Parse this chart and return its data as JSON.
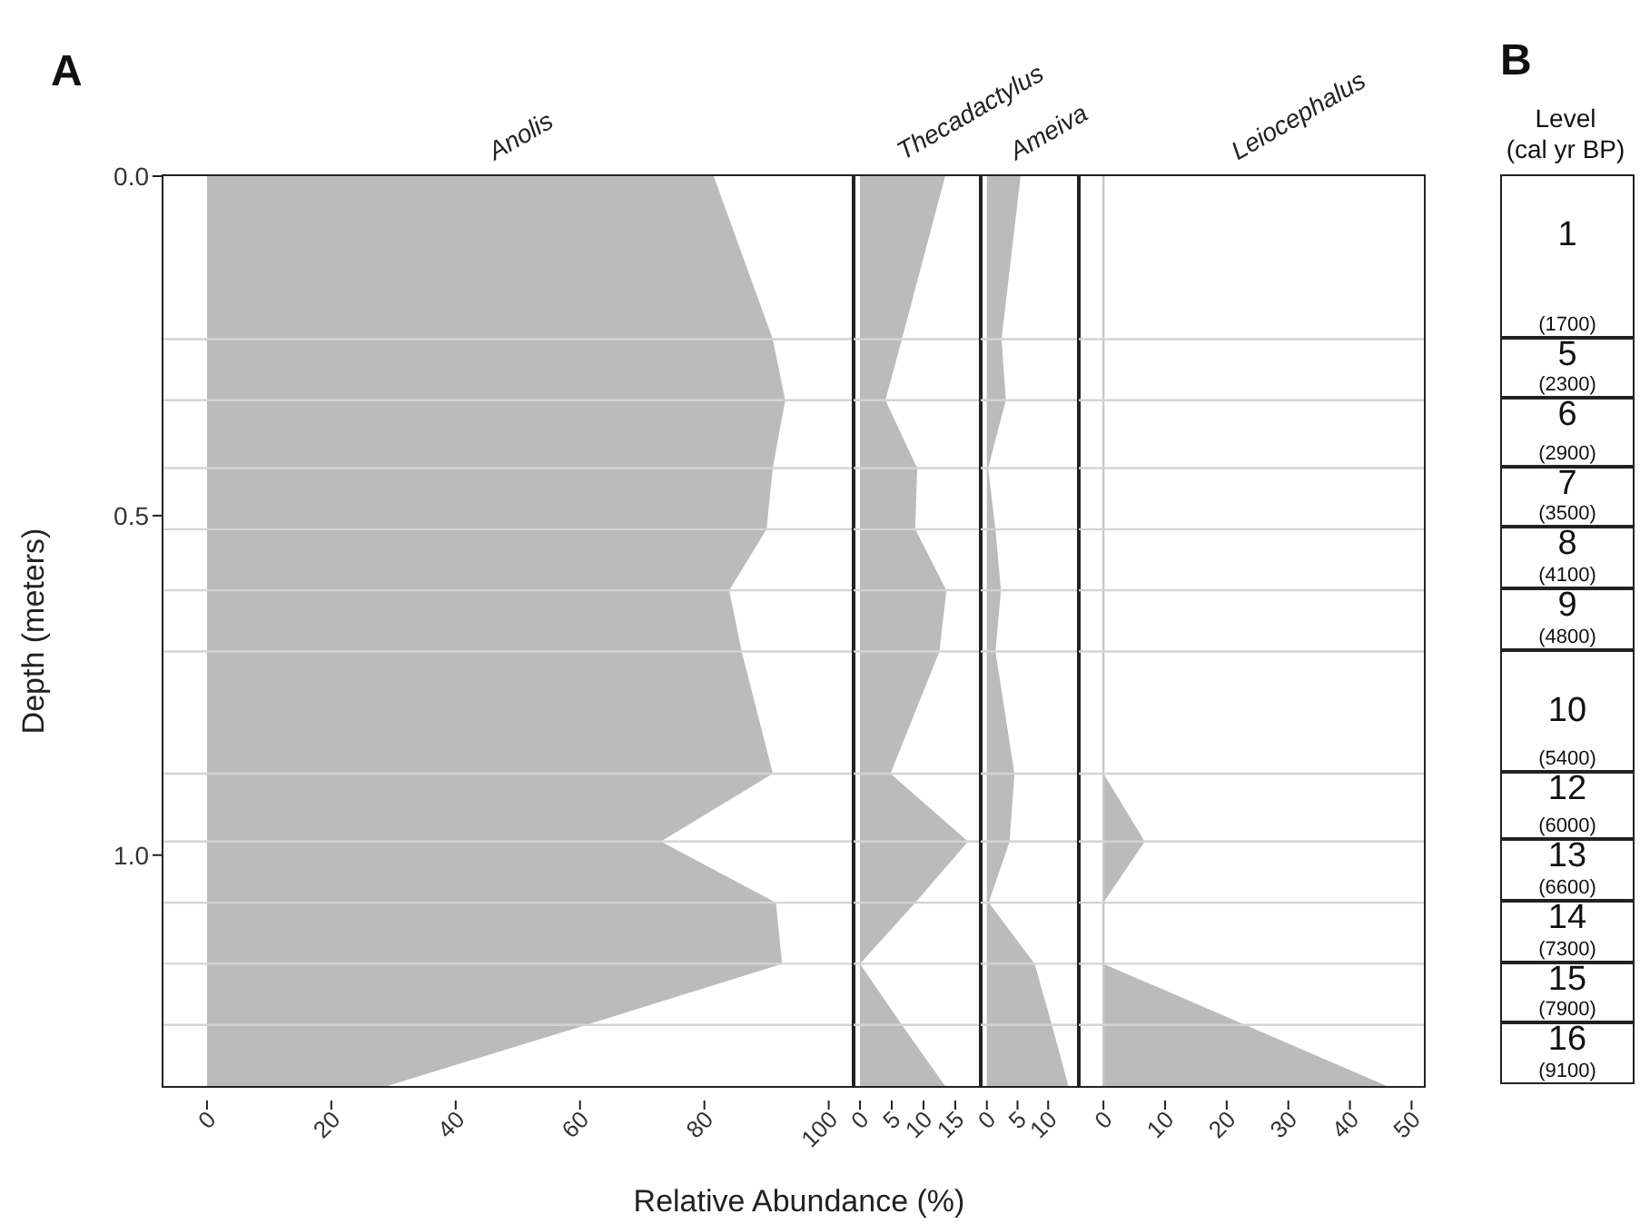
{
  "chart_data": [
    {
      "type": "area",
      "title": "Anolis",
      "ylabel": "Depth (meters)",
      "xlabel": "Relative Abundance (%)",
      "annotations": [
        "A"
      ],
      "orientation": "horizontal",
      "x": [
        0,
        0.24,
        0.33,
        0.43,
        0.52,
        0.61,
        0.7,
        0.88,
        0.98,
        1.07,
        1.16,
        1.25,
        1.34
      ],
      "values": [
        81.5,
        91,
        93,
        91,
        90,
        84,
        86,
        91,
        73,
        91.5,
        92.5,
        61,
        29
      ],
      "color": "#bbbbbb",
      "xlim": [
        -7,
        104
      ],
      "xticks": [
        0,
        20,
        40,
        60,
        80,
        100
      ],
      "ylim": [
        1.34,
        0
      ],
      "yticks": [
        {
          "value": 0,
          "label": "0.0"
        },
        {
          "value": 0.5,
          "label": "0.5"
        },
        {
          "value": 1,
          "label": "1.0"
        }
      ],
      "ref_lines": [
        {
          "axis": "y",
          "value": 0.24,
          "color": "#d4d4d4"
        },
        {
          "axis": "y",
          "value": 0.33,
          "color": "#d4d4d4"
        },
        {
          "axis": "y",
          "value": 0.43,
          "color": "#d4d4d4"
        },
        {
          "axis": "y",
          "value": 0.52,
          "color": "#d4d4d4"
        },
        {
          "axis": "y",
          "value": 0.61,
          "color": "#d4d4d4"
        },
        {
          "axis": "y",
          "value": 0.7,
          "color": "#d4d4d4"
        },
        {
          "axis": "y",
          "value": 0.88,
          "color": "#d4d4d4"
        },
        {
          "axis": "y",
          "value": 0.98,
          "color": "#d4d4d4"
        },
        {
          "axis": "y",
          "value": 1.07,
          "color": "#d4d4d4"
        },
        {
          "axis": "y",
          "value": 1.16,
          "color": "#d4d4d4"
        },
        {
          "axis": "y",
          "value": 1.25,
          "color": "#d4d4d4"
        }
      ]
    },
    {
      "type": "area",
      "title": "Thecadactylus",
      "orientation": "horizontal",
      "tick_labels": "x",
      "x": [
        0,
        0.24,
        0.33,
        0.43,
        0.52,
        0.61,
        0.7,
        0.88,
        0.98,
        1.07,
        1.16,
        1.25,
        1.34
      ],
      "values": [
        13.4,
        6.6,
        4,
        9,
        8.7,
        13.6,
        12.5,
        4.8,
        17,
        8.7,
        0,
        6.6,
        13.4
      ],
      "color": "#bbbbbb",
      "xlim": [
        -1,
        19
      ],
      "xticks": [
        0,
        5,
        10,
        15
      ],
      "ylim": [
        1.34,
        0
      ],
      "ref_lines": [
        {
          "axis": "y",
          "value": 0.24,
          "color": "#d4d4d4"
        },
        {
          "axis": "y",
          "value": 0.33,
          "color": "#d4d4d4"
        },
        {
          "axis": "y",
          "value": 0.43,
          "color": "#d4d4d4"
        },
        {
          "axis": "y",
          "value": 0.52,
          "color": "#d4d4d4"
        },
        {
          "axis": "y",
          "value": 0.61,
          "color": "#d4d4d4"
        },
        {
          "axis": "y",
          "value": 0.7,
          "color": "#d4d4d4"
        },
        {
          "axis": "y",
          "value": 0.88,
          "color": "#d4d4d4"
        },
        {
          "axis": "y",
          "value": 0.98,
          "color": "#d4d4d4"
        },
        {
          "axis": "y",
          "value": 1.07,
          "color": "#d4d4d4"
        },
        {
          "axis": "y",
          "value": 1.16,
          "color": "#d4d4d4"
        },
        {
          "axis": "y",
          "value": 1.25,
          "color": "#d4d4d4"
        }
      ]
    },
    {
      "type": "area",
      "title": "Ameiva",
      "orientation": "horizontal",
      "tick_labels": "x",
      "x": [
        0,
        0.24,
        0.33,
        0.43,
        0.52,
        0.61,
        0.7,
        0.88,
        0.98,
        1.07,
        1.16,
        1.25,
        1.34
      ],
      "values": [
        5.5,
        2.4,
        3.1,
        0.2,
        1.4,
        2.3,
        1.4,
        4.5,
        3.7,
        0.3,
        7.8,
        10.6,
        13.3
      ],
      "color": "#bbbbbb",
      "xlim": [
        -1,
        15
      ],
      "xticks": [
        0,
        5,
        10
      ],
      "ylim": [
        1.34,
        0
      ],
      "ref_lines": [
        {
          "axis": "y",
          "value": 0.24,
          "color": "#d4d4d4"
        },
        {
          "axis": "y",
          "value": 0.33,
          "color": "#d4d4d4"
        },
        {
          "axis": "y",
          "value": 0.43,
          "color": "#d4d4d4"
        },
        {
          "axis": "y",
          "value": 0.52,
          "color": "#d4d4d4"
        },
        {
          "axis": "y",
          "value": 0.61,
          "color": "#d4d4d4"
        },
        {
          "axis": "y",
          "value": 0.7,
          "color": "#d4d4d4"
        },
        {
          "axis": "y",
          "value": 0.88,
          "color": "#d4d4d4"
        },
        {
          "axis": "y",
          "value": 0.98,
          "color": "#d4d4d4"
        },
        {
          "axis": "y",
          "value": 1.07,
          "color": "#d4d4d4"
        },
        {
          "axis": "y",
          "value": 1.16,
          "color": "#d4d4d4"
        },
        {
          "axis": "y",
          "value": 1.25,
          "color": "#d4d4d4"
        }
      ]
    },
    {
      "type": "area",
      "title": "Leiocephalus",
      "orientation": "horizontal",
      "tick_labels": "x",
      "x": [
        0,
        0.24,
        0.33,
        0.43,
        0.52,
        0.61,
        0.7,
        0.88,
        0.98,
        1.07,
        1.16,
        1.25,
        1.34
      ],
      "values": [
        0,
        0,
        0,
        0,
        0,
        0,
        0,
        0,
        6.7,
        0,
        0,
        23,
        46
      ],
      "color": "#bbbbbb",
      "xlim": [
        -4,
        52
      ],
      "xticks": [
        0,
        10,
        20,
        30,
        40,
        50
      ],
      "ylim": [
        1.34,
        0
      ],
      "ref_lines": [
        {
          "axis": "x",
          "value": 0,
          "color": "#c8c8c8"
        },
        {
          "axis": "y",
          "value": 0.24,
          "color": "#d4d4d4"
        },
        {
          "axis": "y",
          "value": 0.33,
          "color": "#d4d4d4"
        },
        {
          "axis": "y",
          "value": 0.43,
          "color": "#d4d4d4"
        },
        {
          "axis": "y",
          "value": 0.52,
          "color": "#d4d4d4"
        },
        {
          "axis": "y",
          "value": 0.61,
          "color": "#d4d4d4"
        },
        {
          "axis": "y",
          "value": 0.7,
          "color": "#d4d4d4"
        },
        {
          "axis": "y",
          "value": 0.88,
          "color": "#d4d4d4"
        },
        {
          "axis": "y",
          "value": 0.98,
          "color": "#d4d4d4"
        },
        {
          "axis": "y",
          "value": 1.07,
          "color": "#d4d4d4"
        },
        {
          "axis": "y",
          "value": 1.16,
          "color": "#d4d4d4"
        },
        {
          "axis": "y",
          "value": 1.25,
          "color": "#d4d4d4"
        }
      ]
    },
    {
      "type": "other",
      "title": "B",
      "ylabel": "Level\n(cal yr BP)",
      "categories": [
        "1",
        "5",
        "6",
        "7",
        "8",
        "9",
        "10",
        "12",
        "13",
        "14",
        "15",
        "16"
      ],
      "value_labels": [
        "(1700)",
        "(2300)",
        "(2900)",
        "(3500)",
        "(4100)",
        "(4800)",
        "(5400)",
        "(6000)",
        "(6600)",
        "(7300)",
        "(7900)",
        "(9100)"
      ]
    }
  ]
}
